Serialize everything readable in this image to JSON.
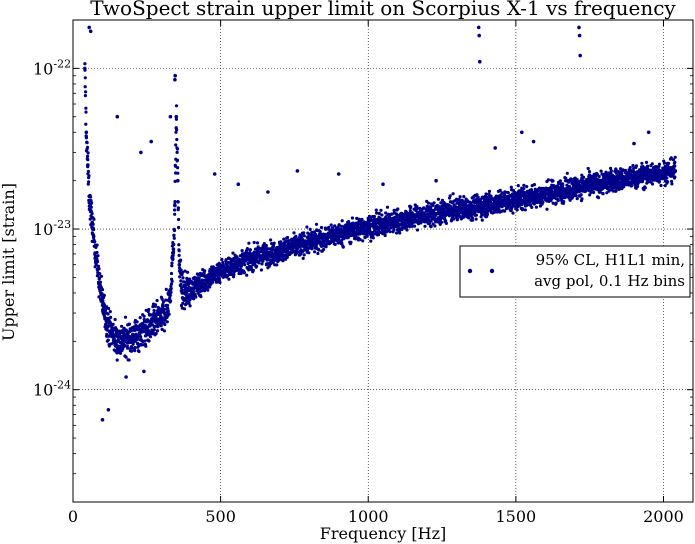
{
  "chart_data": {
    "type": "scatter",
    "title": "TwoSpect strain upper limit on Scorpius X-1 vs frequency",
    "xlabel": "Frequency [Hz]",
    "ylabel": "Upper limit [strain]",
    "xlim": [
      0,
      2100
    ],
    "ylim": [
      2e-25,
      2e-22
    ],
    "yscale": "log",
    "grid": true,
    "legend_position": "right",
    "legend": [
      "95% CL, H1L1 min,",
      "avg pol, 0.1 Hz bins"
    ],
    "x_ticks": [
      "0",
      "500",
      "1000",
      "1500",
      "2000"
    ],
    "x_tick_values": [
      0,
      500,
      1000,
      1500,
      2000
    ],
    "y_ticks": [
      {
        "base": "10",
        "exp": "-24",
        "value": 1e-24
      },
      {
        "base": "10",
        "exp": "-23",
        "value": 1e-23
      },
      {
        "base": "10",
        "exp": "-22",
        "value": 1e-22
      }
    ],
    "marker_color": "#00008b",
    "series": [
      {
        "name": "95% CL, H1L1 min, avg pol, 0.1 Hz bins",
        "x": [
          40,
          45,
          50,
          55,
          60,
          65,
          70,
          80,
          90,
          100,
          120,
          150,
          200,
          250,
          300,
          320,
          330,
          340,
          345,
          350,
          355,
          360,
          370,
          400,
          450,
          500,
          600,
          700,
          800,
          900,
          1000,
          1100,
          1200,
          1300,
          1400,
          1500,
          1600,
          1700,
          1800,
          1900,
          2000,
          2040
        ],
        "y": [
          1e-22,
          4e-23,
          2.5e-23,
          1.6e-23,
          1.3e-23,
          1.1e-23,
          9e-24,
          6.5e-24,
          4.5e-24,
          3.5e-24,
          2.5e-24,
          2e-24,
          2.1e-24,
          2.4e-24,
          2.8e-24,
          3.2e-24,
          4.2e-24,
          7.5e-24,
          1.4e-23,
          5e-23,
          2e-23,
          6e-24,
          4e-24,
          4.2e-24,
          4.8e-24,
          5.5e-24,
          6.5e-24,
          7.3e-24,
          8.3e-24,
          9.3e-24,
          1.03e-23,
          1.12e-23,
          1.22e-23,
          1.32e-23,
          1.42e-23,
          1.52e-23,
          1.65e-23,
          1.8e-23,
          1.95e-23,
          2.1e-23,
          2.25e-23,
          2.3e-23
        ]
      }
    ],
    "outliers": {
      "x": [
        55,
        60,
        150,
        230,
        265,
        330,
        345,
        346,
        480,
        560,
        660,
        760,
        900,
        1050,
        1230,
        1374,
        1376,
        1378,
        1430,
        1520,
        1560,
        1714,
        1716,
        1718,
        1900,
        1950,
        100,
        120,
        180,
        240
      ],
      "y": [
        1.8e-22,
        1.7e-22,
        5e-23,
        3e-23,
        3.5e-23,
        5e-23,
        8.5e-23,
        9e-23,
        2.2e-23,
        1.9e-23,
        1.7e-23,
        2.3e-23,
        2.2e-23,
        1.9e-23,
        2e-23,
        1.8e-22,
        1.6e-22,
        1.1e-22,
        3.2e-23,
        4e-23,
        3.5e-23,
        1.8e-22,
        1.6e-22,
        1.2e-22,
        3.4e-23,
        4e-23,
        6.5e-25,
        7.5e-25,
        1.2e-24,
        1.3e-24
      ]
    }
  }
}
